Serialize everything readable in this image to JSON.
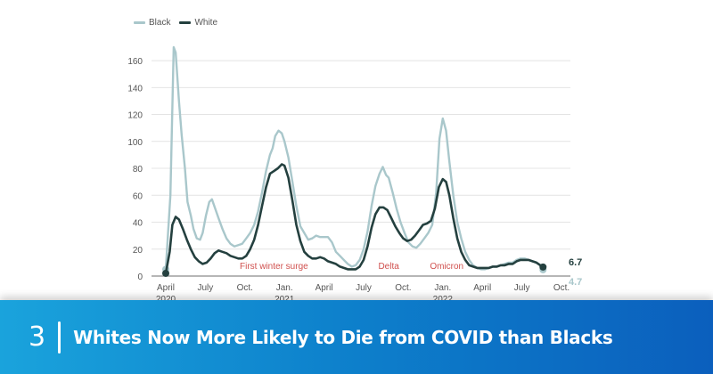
{
  "chart_data": {
    "type": "line",
    "title": "",
    "xlabel": "",
    "ylabel": "",
    "ylim": [
      0,
      170
    ],
    "grid": true,
    "legend_position": "top-left",
    "yticks": [
      0,
      20,
      40,
      60,
      80,
      100,
      120,
      140,
      160
    ],
    "xticks": [
      {
        "m": 0,
        "label": "April",
        "year": "2020"
      },
      {
        "m": 3,
        "label": "July",
        "year": ""
      },
      {
        "m": 6,
        "label": "Oct.",
        "year": ""
      },
      {
        "m": 9,
        "label": "Jan.",
        "year": "2021"
      },
      {
        "m": 12,
        "label": "April",
        "year": ""
      },
      {
        "m": 15,
        "label": "July",
        "year": ""
      },
      {
        "m": 18,
        "label": "Oct.",
        "year": ""
      },
      {
        "m": 21,
        "label": "Jan.",
        "year": "2022"
      },
      {
        "m": 24,
        "label": "April",
        "year": ""
      },
      {
        "m": 27,
        "label": "July",
        "year": ""
      },
      {
        "m": 30,
        "label": "Oct.",
        "year": ""
      }
    ],
    "x_unit": "months since April 2020",
    "series": [
      {
        "name": "Black",
        "color": "#a9c7cb",
        "end_label": "4.7",
        "points": [
          [
            0,
            5
          ],
          [
            0.35,
            60
          ],
          [
            0.6,
            170
          ],
          [
            0.75,
            166
          ],
          [
            1.0,
            130
          ],
          [
            1.2,
            105
          ],
          [
            1.45,
            80
          ],
          [
            1.65,
            55
          ],
          [
            1.9,
            45
          ],
          [
            2.1,
            35
          ],
          [
            2.35,
            28
          ],
          [
            2.6,
            27
          ],
          [
            2.8,
            32
          ],
          [
            3.05,
            45
          ],
          [
            3.3,
            55
          ],
          [
            3.5,
            57
          ],
          [
            3.75,
            50
          ],
          [
            4.0,
            43
          ],
          [
            4.3,
            35
          ],
          [
            4.6,
            28
          ],
          [
            4.9,
            24
          ],
          [
            5.2,
            22
          ],
          [
            5.5,
            23
          ],
          [
            5.8,
            24
          ],
          [
            6.1,
            28
          ],
          [
            6.4,
            32
          ],
          [
            6.7,
            38
          ],
          [
            7.0,
            48
          ],
          [
            7.3,
            62
          ],
          [
            7.6,
            78
          ],
          [
            7.9,
            90
          ],
          [
            8.1,
            95
          ],
          [
            8.3,
            104
          ],
          [
            8.55,
            108
          ],
          [
            8.8,
            106
          ],
          [
            9.0,
            100
          ],
          [
            9.3,
            88
          ],
          [
            9.6,
            70
          ],
          [
            9.9,
            52
          ],
          [
            10.2,
            37
          ],
          [
            10.5,
            32
          ],
          [
            10.8,
            27
          ],
          [
            11.1,
            28
          ],
          [
            11.4,
            30
          ],
          [
            11.7,
            29
          ],
          [
            12.0,
            29
          ],
          [
            12.3,
            29
          ],
          [
            12.6,
            25
          ],
          [
            12.9,
            18
          ],
          [
            13.2,
            15
          ],
          [
            13.5,
            12
          ],
          [
            13.8,
            9
          ],
          [
            14.1,
            7
          ],
          [
            14.4,
            8
          ],
          [
            14.7,
            12
          ],
          [
            15.0,
            20
          ],
          [
            15.3,
            33
          ],
          [
            15.6,
            52
          ],
          [
            15.9,
            67
          ],
          [
            16.2,
            76
          ],
          [
            16.45,
            81
          ],
          [
            16.7,
            75
          ],
          [
            16.9,
            73
          ],
          [
            17.2,
            62
          ],
          [
            17.5,
            50
          ],
          [
            17.8,
            40
          ],
          [
            18.1,
            32
          ],
          [
            18.4,
            25
          ],
          [
            18.7,
            22
          ],
          [
            19.0,
            21
          ],
          [
            19.3,
            24
          ],
          [
            19.6,
            28
          ],
          [
            19.9,
            32
          ],
          [
            20.2,
            38
          ],
          [
            20.5,
            62
          ],
          [
            20.75,
            102
          ],
          [
            21.0,
            117
          ],
          [
            21.25,
            108
          ],
          [
            21.5,
            85
          ],
          [
            21.8,
            60
          ],
          [
            22.1,
            40
          ],
          [
            22.4,
            28
          ],
          [
            22.7,
            18
          ],
          [
            23.0,
            12
          ],
          [
            23.3,
            8
          ],
          [
            23.6,
            6
          ],
          [
            23.9,
            5
          ],
          [
            24.2,
            5
          ],
          [
            24.5,
            6
          ],
          [
            24.8,
            7
          ],
          [
            25.1,
            7
          ],
          [
            25.4,
            8
          ],
          [
            25.7,
            9
          ],
          [
            26.0,
            10
          ],
          [
            26.3,
            10
          ],
          [
            26.6,
            12
          ],
          [
            26.9,
            13
          ],
          [
            27.2,
            13
          ],
          [
            27.5,
            12
          ],
          [
            27.8,
            11
          ],
          [
            28.1,
            10
          ],
          [
            28.4,
            8
          ],
          [
            28.6,
            4.7
          ]
        ]
      },
      {
        "name": "White",
        "color": "#24403f",
        "end_label": "6.7",
        "points": [
          [
            0,
            2
          ],
          [
            0.3,
            18
          ],
          [
            0.5,
            38
          ],
          [
            0.75,
            44
          ],
          [
            1.0,
            42
          ],
          [
            1.3,
            35
          ],
          [
            1.6,
            27
          ],
          [
            1.9,
            20
          ],
          [
            2.2,
            14
          ],
          [
            2.5,
            11
          ],
          [
            2.8,
            9
          ],
          [
            3.1,
            10
          ],
          [
            3.4,
            13
          ],
          [
            3.7,
            17
          ],
          [
            4.0,
            19
          ],
          [
            4.3,
            18
          ],
          [
            4.6,
            17
          ],
          [
            4.9,
            15
          ],
          [
            5.2,
            14
          ],
          [
            5.5,
            13
          ],
          [
            5.8,
            13
          ],
          [
            6.1,
            15
          ],
          [
            6.4,
            20
          ],
          [
            6.7,
            27
          ],
          [
            7.0,
            38
          ],
          [
            7.3,
            52
          ],
          [
            7.6,
            66
          ],
          [
            7.9,
            76
          ],
          [
            8.2,
            78
          ],
          [
            8.5,
            80
          ],
          [
            8.8,
            83
          ],
          [
            9.0,
            82
          ],
          [
            9.3,
            73
          ],
          [
            9.6,
            56
          ],
          [
            9.9,
            38
          ],
          [
            10.2,
            26
          ],
          [
            10.5,
            18
          ],
          [
            10.8,
            15
          ],
          [
            11.1,
            13
          ],
          [
            11.4,
            13
          ],
          [
            11.7,
            14
          ],
          [
            12.0,
            13
          ],
          [
            12.3,
            11
          ],
          [
            12.6,
            10
          ],
          [
            12.9,
            9
          ],
          [
            13.2,
            7
          ],
          [
            13.5,
            6
          ],
          [
            13.8,
            5
          ],
          [
            14.1,
            5
          ],
          [
            14.4,
            5
          ],
          [
            14.7,
            7
          ],
          [
            15.0,
            12
          ],
          [
            15.3,
            22
          ],
          [
            15.6,
            36
          ],
          [
            15.9,
            46
          ],
          [
            16.2,
            51
          ],
          [
            16.5,
            51
          ],
          [
            16.8,
            49
          ],
          [
            17.1,
            43
          ],
          [
            17.4,
            37
          ],
          [
            17.7,
            32
          ],
          [
            18.0,
            28
          ],
          [
            18.3,
            26
          ],
          [
            18.6,
            27
          ],
          [
            18.9,
            30
          ],
          [
            19.2,
            34
          ],
          [
            19.5,
            38
          ],
          [
            19.8,
            39
          ],
          [
            20.1,
            41
          ],
          [
            20.4,
            50
          ],
          [
            20.7,
            66
          ],
          [
            21.0,
            72
          ],
          [
            21.25,
            70
          ],
          [
            21.5,
            60
          ],
          [
            21.8,
            43
          ],
          [
            22.1,
            28
          ],
          [
            22.4,
            18
          ],
          [
            22.7,
            12
          ],
          [
            23.0,
            8
          ],
          [
            23.3,
            7
          ],
          [
            23.6,
            6
          ],
          [
            23.9,
            6
          ],
          [
            24.2,
            6
          ],
          [
            24.5,
            6
          ],
          [
            24.8,
            7
          ],
          [
            25.1,
            7
          ],
          [
            25.4,
            8
          ],
          [
            25.7,
            8
          ],
          [
            26.0,
            9
          ],
          [
            26.3,
            9
          ],
          [
            26.6,
            11
          ],
          [
            26.9,
            12
          ],
          [
            27.2,
            12
          ],
          [
            27.5,
            12
          ],
          [
            27.8,
            11
          ],
          [
            28.1,
            10
          ],
          [
            28.4,
            8
          ],
          [
            28.6,
            6.7
          ]
        ]
      }
    ],
    "annotations": [
      {
        "text": "First winter surge",
        "m": 8.2,
        "y": 8
      },
      {
        "text": "Delta",
        "m": 16.9,
        "y": 8
      },
      {
        "text": "Omicron",
        "m": 21.3,
        "y": 8
      }
    ],
    "annotation_color": "#d0504e"
  },
  "banner": {
    "number": "3",
    "title": "Whites Now More Likely to Die from COVID than Blacks"
  }
}
